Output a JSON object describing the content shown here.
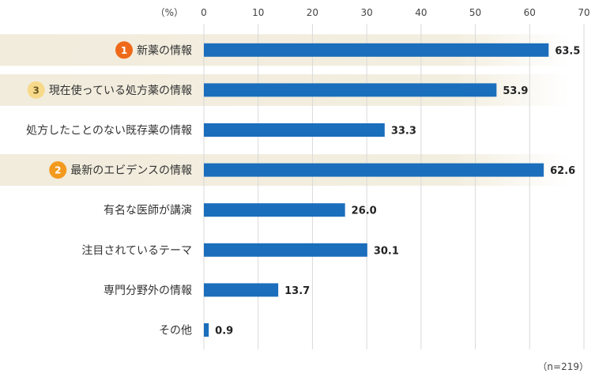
{
  "chart_data": {
    "type": "bar",
    "orientation": "horizontal",
    "unit_label": "（%）",
    "x_ticks": [
      "0",
      "10",
      "20",
      "30",
      "40",
      "50",
      "60",
      "70"
    ],
    "xlim": [
      0,
      70
    ],
    "grid": true,
    "categories": [
      "新薬の情報",
      "現在使っている処方薬の情報",
      "処方したことのない既存薬の情報",
      "最新のエビデンスの情報",
      "有名な医師が講演",
      "注目されているテーマ",
      "専門分野外の情報",
      "その他"
    ],
    "values": [
      63.5,
      53.9,
      33.3,
      62.6,
      26.0,
      30.1,
      13.7,
      0.9
    ],
    "value_labels": [
      "63.5",
      "53.9",
      "33.3",
      "62.6",
      "26.0",
      "30.1",
      "13.7",
      "0.9"
    ],
    "rank_badges": [
      {
        "index": 0,
        "label": "1",
        "color": "#ee6a1a"
      },
      {
        "index": 1,
        "label": "3",
        "color": "#f7d98a"
      },
      {
        "index": 3,
        "label": "2",
        "color": "#f39a1e"
      }
    ],
    "highlight_color": "#f1ecdc",
    "bar_color": "#1a6ebc",
    "sample_note": "（n=219）"
  }
}
